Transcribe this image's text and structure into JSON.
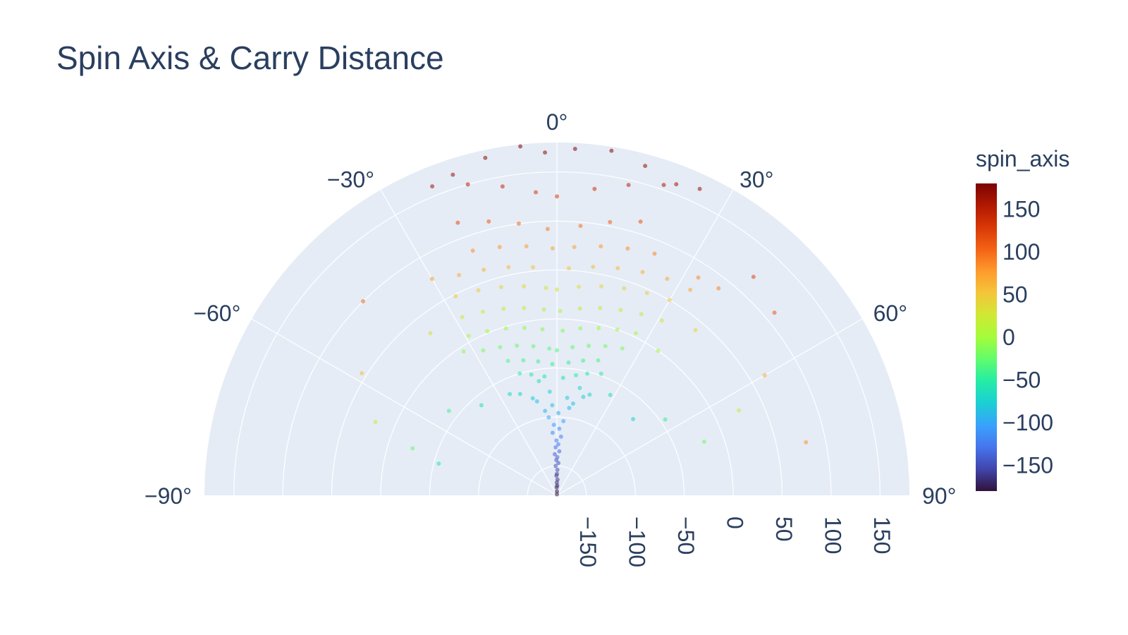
{
  "chart_data": {
    "type": "scatter",
    "subtype": "polar",
    "title": "Spin Axis & Carry Distance",
    "angular_axis": {
      "range": [
        -90,
        90
      ],
      "tick_labels": [
        "−90°",
        "−60°",
        "−30°",
        "0°",
        "30°",
        "60°",
        "90°"
      ],
      "tick_values": [
        -90,
        -60,
        -30,
        0,
        30,
        60,
        90
      ],
      "direction": "clockwise",
      "zero_position": "top"
    },
    "radial_axis": {
      "range": [
        -180,
        180
      ],
      "tick_values": [
        -150,
        -100,
        -50,
        0,
        50,
        100,
        150
      ],
      "tick_labels": [
        "−150",
        "−100",
        "−50",
        "0",
        "50",
        "100",
        "150"
      ],
      "grid": true
    },
    "colorbar": {
      "title": "spin_axis",
      "range": [
        -180,
        180
      ],
      "tick_values": [
        150,
        100,
        50,
        0,
        -50,
        -100,
        -150
      ],
      "tick_labels": [
        "150",
        "100",
        "50",
        "0",
        "−50",
        "−100",
        "−150"
      ],
      "colorscale": "Turbo",
      "placement": "right"
    },
    "marker_opacity": 0.55,
    "series": [
      {
        "name": "",
        "points": [
          [
            -1,
            -179
          ],
          [
            0.5,
            -176
          ],
          [
            -2,
            -172
          ],
          [
            1.5,
            -170
          ],
          [
            -0.5,
            -167
          ],
          [
            2,
            -164
          ],
          [
            -1.5,
            -160
          ],
          [
            0,
            -158
          ],
          [
            1,
            -154
          ],
          [
            -2.5,
            -150
          ],
          [
            2.5,
            -147
          ],
          [
            -1,
            -144
          ],
          [
            0.5,
            -141
          ],
          [
            -3,
            -138
          ],
          [
            3,
            -135
          ],
          [
            -1.5,
            -131
          ],
          [
            1.5,
            -128
          ],
          [
            -0.5,
            -124
          ],
          [
            4,
            -120
          ],
          [
            -4,
            -116
          ],
          [
            2,
            -112
          ],
          [
            -2.5,
            -108
          ],
          [
            5,
            -104
          ],
          [
            -6,
            -100
          ],
          [
            1,
            -96
          ],
          [
            -8,
            -93
          ],
          [
            8,
            -90
          ],
          [
            -3,
            -88
          ],
          [
            10,
            -85
          ],
          [
            -12,
            -82
          ],
          [
            6,
            -80
          ],
          [
            -14,
            -78
          ],
          [
            15,
            -76
          ],
          [
            -4,
            -74
          ],
          [
            18,
            -72
          ],
          [
            -20,
            -70
          ],
          [
            12,
            -68
          ],
          [
            -25,
            -66
          ],
          [
            28,
            -64
          ],
          [
            -9,
            -62
          ],
          [
            3,
            -60
          ],
          [
            -6,
            -58
          ],
          [
            9,
            -56
          ],
          [
            -12,
            -54
          ],
          [
            14,
            -52
          ],
          [
            -17,
            -50
          ],
          [
            20,
            -48
          ],
          [
            -2,
            -46
          ],
          [
            5,
            -44
          ],
          [
            -8,
            -42
          ],
          [
            11,
            -40
          ],
          [
            -14,
            -38
          ],
          [
            17,
            -36
          ],
          [
            -20,
            -34
          ],
          [
            0,
            -32
          ],
          [
            -3,
            -30
          ],
          [
            6,
            -28
          ],
          [
            -9,
            -26
          ],
          [
            12,
            -24
          ],
          [
            -15,
            -22
          ],
          [
            18,
            -20
          ],
          [
            -21,
            -18
          ],
          [
            24,
            -16
          ],
          [
            -27,
            -14
          ],
          [
            2,
            -12
          ],
          [
            -5,
            -10
          ],
          [
            8,
            -8
          ],
          [
            -11,
            -6
          ],
          [
            14,
            -4
          ],
          [
            -17,
            -2
          ],
          [
            20,
            0
          ],
          [
            -23,
            2
          ],
          [
            26,
            4
          ],
          [
            -29,
            6
          ],
          [
            1,
            8
          ],
          [
            -4,
            10
          ],
          [
            7,
            12
          ],
          [
            -10,
            14
          ],
          [
            13,
            16
          ],
          [
            -16,
            18
          ],
          [
            19,
            20
          ],
          [
            -22,
            22
          ],
          [
            25,
            24
          ],
          [
            -28,
            26
          ],
          [
            31,
            28
          ],
          [
            0,
            30
          ],
          [
            -3,
            32
          ],
          [
            6,
            34
          ],
          [
            -9,
            36
          ],
          [
            12,
            38
          ],
          [
            -15,
            40
          ],
          [
            18,
            42
          ],
          [
            -21,
            44
          ],
          [
            24,
            46
          ],
          [
            -27,
            48
          ],
          [
            30,
            50
          ],
          [
            3,
            52
          ],
          [
            -6,
            54
          ],
          [
            9,
            56
          ],
          [
            -12,
            58
          ],
          [
            15,
            60
          ],
          [
            -18,
            62
          ],
          [
            21,
            64
          ],
          [
            -24,
            66
          ],
          [
            27,
            68
          ],
          [
            33,
            70
          ],
          [
            -1,
            72
          ],
          [
            4,
            74
          ],
          [
            -7,
            76
          ],
          [
            10,
            78
          ],
          [
            -13,
            80
          ],
          [
            16,
            82
          ],
          [
            -19,
            84
          ],
          [
            22,
            86
          ],
          [
            38,
            88
          ],
          [
            -2,
            92
          ],
          [
            5,
            96
          ],
          [
            -8,
            100
          ],
          [
            11,
            104
          ],
          [
            -14,
            108
          ],
          [
            17,
            112
          ],
          [
            -20,
            116
          ],
          [
            42,
            120
          ],
          [
            0,
            125
          ],
          [
            -4,
            130
          ],
          [
            7,
            135
          ],
          [
            -10,
            140
          ],
          [
            13,
            145
          ],
          [
            -16,
            150
          ],
          [
            19,
            155
          ],
          [
            -22,
            160
          ],
          [
            25,
            165
          ],
          [
            -2,
            170
          ],
          [
            3,
            174
          ],
          [
            -6,
            178
          ],
          [
            9,
            176
          ],
          [
            -12,
            172
          ],
          [
            15,
            168
          ],
          [
            -18,
            164
          ],
          [
            21,
            160
          ],
          [
            -45,
            100
          ],
          [
            50,
            110
          ],
          [
            -58,
            55
          ],
          [
            60,
            65
          ],
          [
            -68,
            20
          ],
          [
            65,
            25
          ],
          [
            -72,
            -25
          ],
          [
            70,
            -20
          ],
          [
            -75,
            -55
          ],
          [
            78,
            80
          ],
          [
            -52,
            -40
          ],
          [
            55,
            -45
          ],
          [
            -38,
            30
          ],
          [
            40,
            40
          ],
          [
            -33,
            -5
          ],
          [
            35,
            0
          ],
          [
            -40,
            -60
          ],
          [
            45,
            -70
          ],
          [
            -30,
            75
          ],
          [
            33,
            85
          ]
        ]
      }
    ]
  }
}
